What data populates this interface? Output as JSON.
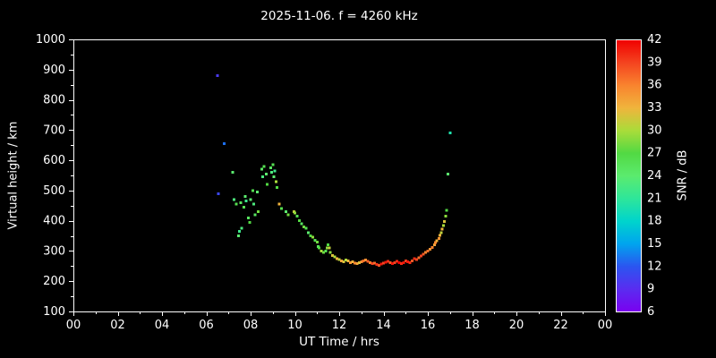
{
  "chart_data": {
    "type": "scatter",
    "title": "2025-11-06. f = 4260 kHz",
    "xlabel": "UT Time / hrs",
    "ylabel": "Virtual height / km",
    "xlim": [
      0,
      24
    ],
    "ylim": [
      100,
      1000
    ],
    "grid": false,
    "background": "#000000",
    "x_ticks": {
      "values": [
        0,
        2,
        4,
        6,
        8,
        10,
        12,
        14,
        16,
        18,
        20,
        22,
        24
      ],
      "labels": [
        "00",
        "02",
        "04",
        "06",
        "08",
        "10",
        "12",
        "14",
        "16",
        "18",
        "20",
        "22",
        "00"
      ]
    },
    "y_ticks": [
      1000,
      900,
      800,
      700,
      600,
      500,
      400,
      300,
      200,
      100
    ],
    "colorbar": {
      "label": "SNR / dB",
      "min": 6,
      "max": 42,
      "ticks": [
        42,
        39,
        36,
        33,
        30,
        27,
        24,
        21,
        18,
        15,
        12,
        9,
        6
      ],
      "stops": [
        {
          "v": 6,
          "c": "#7A00F0"
        },
        {
          "v": 9,
          "c": "#5A2CF0"
        },
        {
          "v": 12,
          "c": "#2B55F0"
        },
        {
          "v": 15,
          "c": "#00A4EE"
        },
        {
          "v": 18,
          "c": "#00D4CC"
        },
        {
          "v": 21,
          "c": "#2EE69A"
        },
        {
          "v": 24,
          "c": "#5BEB6E"
        },
        {
          "v": 27,
          "c": "#52D943"
        },
        {
          "v": 30,
          "c": "#AADC3A"
        },
        {
          "v": 33,
          "c": "#F0B43C"
        },
        {
          "v": 36,
          "c": "#F9832E"
        },
        {
          "v": 39,
          "c": "#F4431F"
        },
        {
          "v": 42,
          "c": "#F00000"
        }
      ]
    },
    "points_format": [
      "ut_hours",
      "virtual_height_km",
      "snr_db"
    ],
    "points": [
      [
        6.5,
        880,
        10
      ],
      [
        6.55,
        490,
        11
      ],
      [
        6.8,
        655,
        13
      ],
      [
        7.2,
        560,
        24
      ],
      [
        7.25,
        470,
        23
      ],
      [
        7.35,
        455,
        26
      ],
      [
        7.45,
        350,
        24
      ],
      [
        7.5,
        365,
        22
      ],
      [
        7.55,
        460,
        25
      ],
      [
        7.6,
        375,
        23
      ],
      [
        7.7,
        445,
        26
      ],
      [
        7.75,
        480,
        24
      ],
      [
        7.8,
        465,
        22
      ],
      [
        7.9,
        410,
        25
      ],
      [
        7.95,
        395,
        27
      ],
      [
        8.0,
        470,
        24
      ],
      [
        8.1,
        500,
        26
      ],
      [
        8.15,
        455,
        23
      ],
      [
        8.2,
        420,
        25
      ],
      [
        8.3,
        495,
        24
      ],
      [
        8.35,
        430,
        28
      ],
      [
        8.5,
        570,
        25
      ],
      [
        8.55,
        545,
        23
      ],
      [
        8.6,
        580,
        26
      ],
      [
        8.7,
        555,
        24
      ],
      [
        8.75,
        520,
        27
      ],
      [
        8.9,
        575,
        25
      ],
      [
        8.95,
        560,
        23
      ],
      [
        9.0,
        585,
        26
      ],
      [
        9.05,
        545,
        24
      ],
      [
        9.1,
        565,
        22
      ],
      [
        9.15,
        530,
        30
      ],
      [
        9.2,
        510,
        27
      ],
      [
        9.3,
        455,
        33
      ],
      [
        9.4,
        440,
        26
      ],
      [
        9.6,
        430,
        24
      ],
      [
        9.7,
        420,
        28
      ],
      [
        9.95,
        430,
        31
      ],
      [
        10.0,
        425,
        29
      ],
      [
        10.1,
        415,
        26
      ],
      [
        10.2,
        400,
        27
      ],
      [
        10.3,
        390,
        25
      ],
      [
        10.4,
        380,
        28
      ],
      [
        10.5,
        375,
        26
      ],
      [
        10.6,
        360,
        24
      ],
      [
        10.7,
        350,
        27
      ],
      [
        10.8,
        345,
        29
      ],
      [
        10.9,
        335,
        26
      ],
      [
        11.0,
        330,
        28
      ],
      [
        11.05,
        315,
        25
      ],
      [
        11.1,
        310,
        27
      ],
      [
        11.2,
        300,
        30
      ],
      [
        11.3,
        295,
        28
      ],
      [
        11.4,
        300,
        26
      ],
      [
        11.45,
        310,
        29
      ],
      [
        11.5,
        320,
        27
      ],
      [
        11.55,
        310,
        31
      ],
      [
        11.6,
        295,
        29
      ],
      [
        11.7,
        285,
        32
      ],
      [
        11.8,
        280,
        30
      ],
      [
        11.9,
        275,
        33
      ],
      [
        12.0,
        272,
        31
      ],
      [
        12.1,
        268,
        34
      ],
      [
        12.2,
        265,
        32
      ],
      [
        12.3,
        270,
        30
      ],
      [
        12.4,
        268,
        33
      ],
      [
        12.5,
        262,
        35
      ],
      [
        12.6,
        265,
        33
      ],
      [
        12.7,
        260,
        36
      ],
      [
        12.8,
        258,
        34
      ],
      [
        12.9,
        262,
        32
      ],
      [
        13.0,
        265,
        35
      ],
      [
        13.1,
        268,
        37
      ],
      [
        13.2,
        270,
        35
      ],
      [
        13.3,
        266,
        38
      ],
      [
        13.4,
        262,
        36
      ],
      [
        13.5,
        258,
        39
      ],
      [
        13.6,
        260,
        37
      ],
      [
        13.7,
        255,
        40
      ],
      [
        13.8,
        253,
        38
      ],
      [
        13.9,
        257,
        41
      ],
      [
        14.0,
        260,
        39
      ],
      [
        14.1,
        263,
        41
      ],
      [
        14.2,
        266,
        40
      ],
      [
        14.3,
        262,
        38
      ],
      [
        14.4,
        258,
        41
      ],
      [
        14.5,
        262,
        39
      ],
      [
        14.6,
        266,
        40
      ],
      [
        14.7,
        262,
        42
      ],
      [
        14.8,
        258,
        40
      ],
      [
        14.9,
        262,
        41
      ],
      [
        15.0,
        268,
        39
      ],
      [
        15.1,
        264,
        41
      ],
      [
        15.2,
        262,
        40
      ],
      [
        15.3,
        268,
        38
      ],
      [
        15.4,
        274,
        40
      ],
      [
        15.5,
        272,
        39
      ],
      [
        15.6,
        278,
        37
      ],
      [
        15.7,
        284,
        39
      ],
      [
        15.8,
        290,
        38
      ],
      [
        15.9,
        296,
        36
      ],
      [
        16.0,
        300,
        37
      ],
      [
        16.1,
        306,
        35
      ],
      [
        16.2,
        312,
        36
      ],
      [
        16.3,
        320,
        34
      ],
      [
        16.35,
        328,
        36
      ],
      [
        16.4,
        334,
        33
      ],
      [
        16.5,
        342,
        35
      ],
      [
        16.55,
        352,
        33
      ],
      [
        16.6,
        360,
        31
      ],
      [
        16.65,
        372,
        33
      ],
      [
        16.7,
        384,
        30
      ],
      [
        16.75,
        398,
        32
      ],
      [
        16.8,
        415,
        29
      ],
      [
        16.85,
        435,
        27
      ],
      [
        16.9,
        555,
        24
      ],
      [
        17.0,
        690,
        20
      ]
    ]
  }
}
